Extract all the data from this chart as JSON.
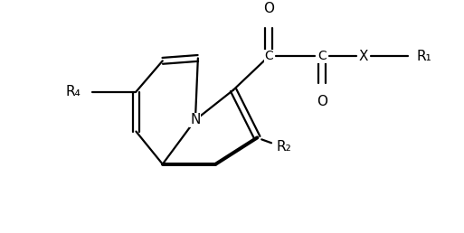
{
  "bg_color": "#ffffff",
  "line_color": "#000000",
  "line_width": 1.6,
  "font_size": 10,
  "figsize": [
    5.13,
    2.58
  ],
  "dpi": 100,
  "labels": {
    "O_top": "O",
    "O_bottom": "O",
    "C_left": "C",
    "C_right": "C",
    "X": "X",
    "R1": "R₁",
    "R2": "R₂",
    "R4": "R₄",
    "N": "N"
  }
}
